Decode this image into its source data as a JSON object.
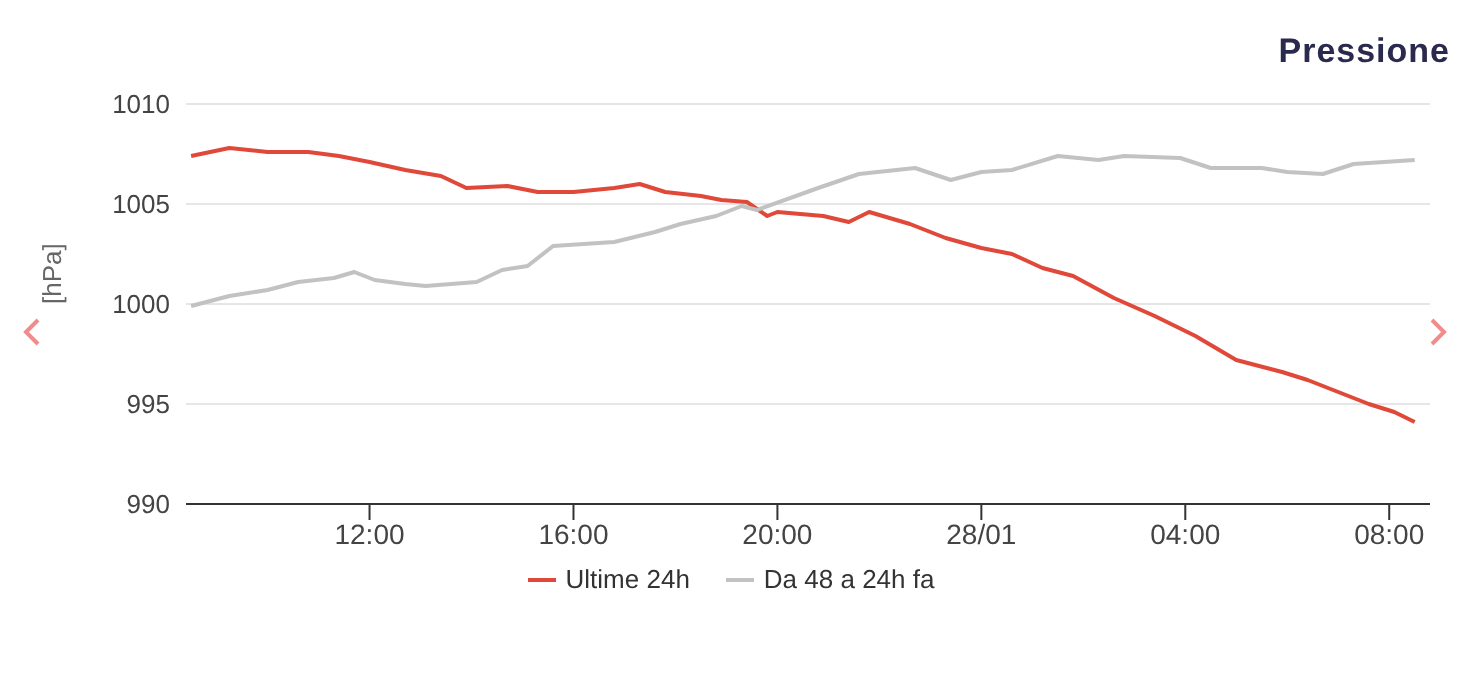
{
  "chart_data": {
    "type": "line",
    "title": "Pressione",
    "ylabel": "[hPa]",
    "xlim": [
      "--01-27T08:24",
      "--01-28T08:48"
    ],
    "xticks": [
      {
        "value": "--01-27T12:00",
        "label": "12:00"
      },
      {
        "value": "--01-27T16:00",
        "label": "16:00"
      },
      {
        "value": "--01-27T20:00",
        "label": "20:00"
      },
      {
        "value": "--01-28T00:00",
        "label": "28/01"
      },
      {
        "value": "--01-28T04:00",
        "label": "04:00"
      },
      {
        "value": "--01-28T08:00",
        "label": "08:00"
      }
    ],
    "ylim": [
      990,
      1010
    ],
    "yticks": [
      990,
      995,
      1000,
      1005,
      1010
    ],
    "grid": "y",
    "legend": "bottom",
    "marker": "none",
    "line_style": "solid",
    "series": [
      {
        "name": "Ultime 24h",
        "color": "#e0493a",
        "x": [
          "--01-27T08:30",
          "--01-27T09:15",
          "--01-27T10:00",
          "--01-27T10:48",
          "--01-27T11:24",
          "--01-27T12:00",
          "--01-27T12:42",
          "--01-27T13:24",
          "--01-27T13:54",
          "--01-27T14:42",
          "--01-27T15:18",
          "--01-27T16:00",
          "--01-27T16:48",
          "--01-27T17:18",
          "--01-27T17:48",
          "--01-27T18:30",
          "--01-27T18:54",
          "--01-27T19:24",
          "--01-27T19:48",
          "--01-27T20:00",
          "--01-27T20:54",
          "--01-27T21:24",
          "--01-27T21:48",
          "--01-27T22:36",
          "--01-27T23:18",
          "--01-28T00:00",
          "--01-28T00:36",
          "--01-28T01:12",
          "--01-28T01:48",
          "--01-28T02:36",
          "--01-28T03:24",
          "--01-28T04:12",
          "--01-28T05:00",
          "--01-28T05:54",
          "--01-28T06:24",
          "--01-28T07:06",
          "--01-28T07:36",
          "--01-28T08:06",
          "--01-28T08:30"
        ],
        "values": [
          1007.4,
          1007.8,
          1007.6,
          1007.6,
          1007.4,
          1007.1,
          1006.7,
          1006.4,
          1005.8,
          1005.9,
          1005.6,
          1005.6,
          1005.8,
          1006.0,
          1005.6,
          1005.4,
          1005.2,
          1005.1,
          1004.4,
          1004.6,
          1004.4,
          1004.1,
          1004.6,
          1004.0,
          1003.3,
          1002.8,
          1002.5,
          1001.8,
          1001.4,
          1000.3,
          999.4,
          998.4,
          997.2,
          996.6,
          996.2,
          995.5,
          995.0,
          994.6,
          994.1
        ]
      },
      {
        "name": "Da 48 a 24h fa",
        "color": "#c2c2c2",
        "x": [
          "--01-27T08:30",
          "--01-27T09:15",
          "--01-27T10:00",
          "--01-27T10:36",
          "--01-27T11:18",
          "--01-27T11:42",
          "--01-27T12:06",
          "--01-27T12:42",
          "--01-27T13:06",
          "--01-27T14:06",
          "--01-27T14:36",
          "--01-27T15:06",
          "--01-27T15:36",
          "--01-27T16:48",
          "--01-27T17:36",
          "--01-27T18:06",
          "--01-27T18:48",
          "--01-27T19:18",
          "--01-27T19:36",
          "--01-27T20:48",
          "--01-27T21:36",
          "--01-27T22:42",
          "--01-27T23:24",
          "--01-28T00:00",
          "--01-28T00:36",
          "--01-28T01:30",
          "--01-28T02:18",
          "--01-28T02:48",
          "--01-28T03:54",
          "--01-28T04:30",
          "--01-28T05:30",
          "--01-28T06:00",
          "--01-28T06:42",
          "--01-28T07:18",
          "--01-28T08:30"
        ],
        "values": [
          999.9,
          1000.4,
          1000.7,
          1001.1,
          1001.3,
          1001.6,
          1001.2,
          1001.0,
          1000.9,
          1001.1,
          1001.7,
          1001.9,
          1002.9,
          1003.1,
          1003.6,
          1004.0,
          1004.4,
          1004.9,
          1004.7,
          1005.8,
          1006.5,
          1006.8,
          1006.2,
          1006.6,
          1006.7,
          1007.4,
          1007.2,
          1007.4,
          1007.3,
          1006.8,
          1006.8,
          1006.6,
          1006.5,
          1007.0,
          1007.2
        ]
      }
    ]
  }
}
